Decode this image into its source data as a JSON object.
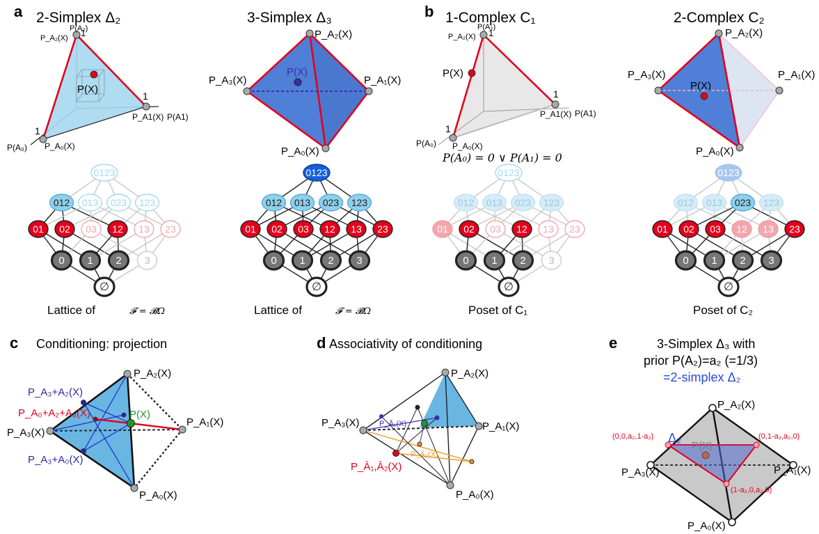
{
  "colors": {
    "light_blue": "#a6d8ee",
    "mid_blue": "#5aa7dd",
    "dark_blue": "#4f7fd6",
    "red": "#e3001b",
    "pink": "#f4a6ae",
    "gray_node": "#707070",
    "purple": "#3d2db0",
    "green": "#1f9a27",
    "orange": "#ef9a2a"
  },
  "panel_letters": {
    "a": "a",
    "b": "b",
    "c": "c",
    "d": "d",
    "e": "e"
  },
  "panel_a1": {
    "title": "2-Simplex Δ₂",
    "vertex_top_label": "P(A₂)",
    "vertex_top_value": "1",
    "vertex_top_func": "P_A₂(X)",
    "vertex_right_value": "1",
    "vertex_right_func": "P_A1(X)",
    "axis_right_label": "P(A1)",
    "vertex_left_value": "1",
    "axis_left_label": "P(A₀)",
    "vertex_left_func": "P_A₀(X)",
    "point_label": "P(X)",
    "caption_prefix": "Lattice of",
    "caption_formula": "𝓕 = 𝓑Ω"
  },
  "panel_a2": {
    "title": "3-Simplex Δ₃",
    "v_top": "P_A₂(X)",
    "v_left": "P_A₃(X)",
    "v_right": "P_A₁(X)",
    "v_bottom": "P_A₀(X)",
    "point_label": "P(X)",
    "caption_prefix": "Lattice of",
    "caption_formula": "𝓕 = 𝓑Ω"
  },
  "panel_b1": {
    "title": "1-Complex C₁",
    "vertex_top_label": "P(A₂)",
    "vertex_top_value": "1",
    "vertex_top_func": "P_A₂(X)",
    "vertex_right_value": "1",
    "vertex_right_func": "P_A1(X)",
    "axis_right_label": "P(A1)",
    "vertex_left_value": "1",
    "axis_left_label": "P(A₀)",
    "vertex_left_func": "P_A₀(X)",
    "point_label": "P(X)",
    "condition": "P(A₀) = 0 ∨ P(A₁) = 0",
    "caption": "Poset of C₁"
  },
  "panel_b2": {
    "title": "2-Complex C₂",
    "v_top": "P_A₂(X)",
    "v_left": "P_A₃(X)",
    "v_right": "P_A₁(X)",
    "v_bottom": "P_A₀(X)",
    "point_label": "P(X)",
    "caption": "Poset of C₂"
  },
  "lattice_nodes": {
    "top": "0123",
    "triples": [
      "012",
      "013",
      "023",
      "123"
    ],
    "pairs": [
      "01",
      "02",
      "03",
      "12",
      "13",
      "23"
    ],
    "singles": [
      "0",
      "1",
      "2",
      "3"
    ],
    "empty": "∅"
  },
  "panel_c": {
    "title": "Conditioning: projection",
    "v_top": "P_A₂(X)",
    "v_left": "P_A₃(X)",
    "v_right": "P_A₁(X)",
    "v_bottom": "P_A₀(X)",
    "label_a3a2": "P_A₃+A₂(X)",
    "label_a0a2a3": "P_A₀+A₂+A₃(X)",
    "label_a3a0": "P_A₃+A₀(X)",
    "point_label": "P(X)"
  },
  "panel_d": {
    "title": "Associativity of conditioning",
    "v_top": "P_A₂(X)",
    "v_left": "P_A₃(X)",
    "v_right": "P_A₁(X)",
    "v_bottom": "P_A₀(X)",
    "label_a1": "P_Ā₁(X)",
    "label_a2": "P_Ā₂(X)",
    "label_a1a2": "P_Ā₁,Ā₂(X)"
  },
  "panel_e": {
    "title_line1": "3-Simplex Δ₃ with",
    "title_line2": "prior P(A₂)=a₂ (=1/3)",
    "title_line3": "=2-simplex Δ₂",
    "inner_label": "Δ₂",
    "v_top": "P_A₂(X)",
    "v_left": "P_A₃(X)",
    "v_right": "P_A₁(X)",
    "v_bottom": "P_A₀(X)",
    "pt_left": "(0,0,a₂,1-a₂)",
    "pt_right": "(0,1-a₂,a₂,0)",
    "pt_bottom": "(1-a₂,0,a₂,0)",
    "point_label": "P(X)"
  }
}
